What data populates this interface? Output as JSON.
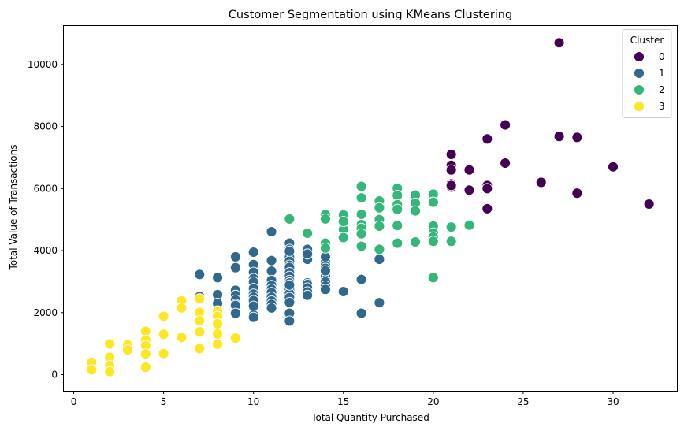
{
  "chart_data": {
    "type": "scatter",
    "title": "Customer Segmentation using KMeans Clustering",
    "xlabel": "Total Quantity Purchased",
    "ylabel": "Total Value of Transactions",
    "xlim": [
      -0.55,
      33.55
    ],
    "ylim": [
      -520,
      11240
    ],
    "xticks": [
      0,
      5,
      10,
      15,
      20,
      25,
      30
    ],
    "yticks": [
      0,
      2000,
      4000,
      6000,
      8000,
      10000
    ],
    "grid": false,
    "legend": {
      "title": "Cluster",
      "placement": "top-right"
    },
    "series": [
      {
        "name": "0",
        "color": "#440154",
        "x": [
          21,
          21,
          21,
          21,
          21,
          21,
          22,
          22,
          23,
          23,
          23,
          23,
          24,
          24,
          26,
          27,
          27,
          28,
          28,
          30,
          32
        ],
        "y": [
          7100,
          6750,
          6600,
          6150,
          6050,
          6100,
          6600,
          5950,
          7600,
          6100,
          6000,
          5350,
          8050,
          6820,
          6200,
          10700,
          7680,
          7650,
          5850,
          6700,
          5500
        ]
      },
      {
        "name": "1",
        "color": "#31688e",
        "x": [
          7,
          7,
          8,
          8,
          8,
          8,
          8,
          9,
          9,
          9,
          9,
          9,
          9,
          9,
          9,
          10,
          10,
          10,
          10,
          10,
          10,
          10,
          10,
          10,
          10,
          10,
          10,
          11,
          11,
          11,
          11,
          11,
          11,
          11,
          11,
          11,
          11,
          11,
          12,
          12,
          12,
          12,
          12,
          12,
          12,
          12,
          12,
          12,
          12,
          12,
          12,
          12,
          12,
          12,
          12,
          12,
          12,
          13,
          13,
          13,
          13,
          13,
          13,
          13,
          13,
          14,
          14,
          14,
          14,
          14,
          14,
          14,
          14,
          14,
          14,
          14,
          15,
          16,
          16,
          17,
          17
        ],
        "y": [
          3230,
          2520,
          3130,
          2580,
          2300,
          2060,
          1980,
          3800,
          3450,
          2720,
          2560,
          2410,
          2270,
          2230,
          1980,
          3950,
          3550,
          3300,
          3100,
          2990,
          2780,
          2600,
          2500,
          2390,
          2210,
          1920,
          1850,
          4610,
          3680,
          3340,
          3040,
          2880,
          2760,
          2650,
          2500,
          2380,
          2270,
          2150,
          4240,
          4040,
          3880,
          3780,
          3660,
          3530,
          3460,
          3290,
          3170,
          3040,
          2960,
          2740,
          2620,
          2490,
          2330,
          1980,
          1730,
          3980,
          2890,
          4040,
          3720,
          2960,
          2910,
          2800,
          2670,
          2560,
          3890,
          3730,
          3640,
          3530,
          3430,
          3170,
          3050,
          2990,
          2860,
          2750,
          3800,
          3350,
          2680,
          1980,
          3070,
          2320,
          3720
        ],
        "x_note": "",
        "hidden_note": ""
      },
      {
        "name": "2",
        "color": "#35b779",
        "x": [
          12,
          13,
          14,
          14,
          14,
          14,
          15,
          15,
          15,
          15,
          15,
          16,
          16,
          16,
          16,
          16,
          16,
          16,
          17,
          17,
          17,
          17,
          17,
          18,
          18,
          18,
          18,
          18,
          18,
          19,
          19,
          19,
          19,
          20,
          20,
          20,
          20,
          20,
          20,
          20,
          21,
          21,
          22
        ],
        "y": [
          5020,
          4560,
          5160,
          5020,
          4240,
          4080,
          5150,
          4880,
          4680,
          4420,
          4940,
          6070,
          5700,
          4840,
          4720,
          4540,
          4140,
          5170,
          5600,
          5380,
          5000,
          4790,
          4040,
          6010,
          5780,
          5480,
          5330,
          4810,
          4240,
          5790,
          5530,
          5280,
          4280,
          5820,
          5560,
          4790,
          4570,
          4440,
          4300,
          3130,
          4760,
          4300,
          4820
        ]
      },
      {
        "name": "3",
        "color": "#fde725",
        "x": [
          1,
          1,
          2,
          2,
          2,
          2,
          3,
          3,
          4,
          4,
          4,
          4,
          4,
          5,
          5,
          5,
          6,
          6,
          6,
          7,
          7,
          7,
          7,
          7,
          8,
          8,
          8,
          8,
          8,
          9
        ],
        "y": [
          400,
          160,
          990,
          560,
          290,
          100,
          960,
          800,
          1400,
          1110,
          940,
          670,
          240,
          1880,
          1300,
          680,
          2380,
          2150,
          1200,
          2450,
          2010,
          1740,
          1380,
          840,
          2050,
          1880,
          1640,
          1310,
          980,
          1180
        ]
      }
    ]
  }
}
